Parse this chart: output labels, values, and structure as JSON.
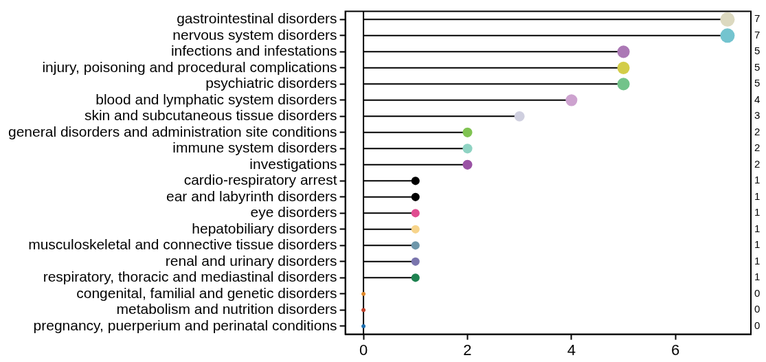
{
  "chart_data": {
    "type": "lollipop",
    "orientation": "horizontal",
    "categories": [
      "gastrointestinal disorders",
      "nervous system disorders",
      "infections and infestations",
      "injury, poisoning and procedural complications",
      "psychiatric disorders",
      "blood and lymphatic system disorders",
      "skin and subcutaneous tissue disorders",
      "general disorders and administration site conditions",
      "immune system disorders",
      "investigations",
      "cardio-respiratory arrest",
      "ear and labyrinth disorders",
      "eye disorders",
      "hepatobiliary disorders",
      "musculoskeletal and connective tissue disorders",
      "renal and urinary disorders",
      "respiratory, thoracic and mediastinal disorders",
      "congenital, familial and genetic disorders",
      "metabolism and nutrition disorders",
      "pregnancy, puerperium and perinatal conditions"
    ],
    "values": [
      7,
      7,
      5,
      5,
      5,
      4,
      3,
      2,
      2,
      2,
      1,
      1,
      1,
      1,
      1,
      1,
      1,
      0,
      0,
      0
    ],
    "sizes": [
      1,
      1,
      0.74,
      0.74,
      0.74,
      0.66,
      0.5,
      0.45,
      0.45,
      0.45,
      0.33,
      0.33,
      0.33,
      0.33,
      0.33,
      0.33,
      0.33,
      0.08,
      0.08,
      0.08
    ],
    "colors": [
      "#dcd9c0",
      "#74c4cf",
      "#ab78b5",
      "#d3cd49",
      "#72c38a",
      "#cda2cf",
      "#cfcfdf",
      "#80c352",
      "#8fd3c3",
      "#9a52a4",
      "#000000",
      "#000000",
      "#e04d90",
      "#f7d48b",
      "#6e97aa",
      "#7a75ad",
      "#1e8250",
      "#e08a2c",
      "#c0402b",
      "#1c6fb0"
    ],
    "xlim": [
      -0.35,
      7.45
    ],
    "xticks": [
      0,
      2,
      4,
      6
    ],
    "ref_lines": [
      {
        "axis": "x",
        "value": 0
      }
    ],
    "data_labels": true,
    "grid": false,
    "legend": false,
    "marker": "circle"
  }
}
